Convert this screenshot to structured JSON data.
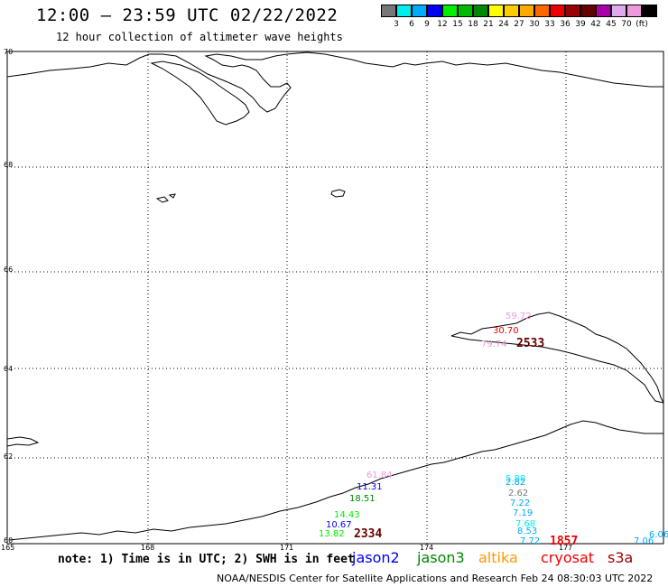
{
  "header": {
    "title": "12:00 – 23:59 UTC 02/22/2022",
    "subtitle": "12 hour collection of altimeter wave heights"
  },
  "colorbar": {
    "colors": [
      "#777777",
      "#00eeee",
      "#00aaff",
      "#0000ee",
      "#00ee00",
      "#00bb00",
      "#008800",
      "#ffff00",
      "#ffcc00",
      "#ffaa00",
      "#ff6600",
      "#ee0000",
      "#990000",
      "#660000",
      "#aa00aa",
      "#ddaaee",
      "#ee99dd",
      "#000000"
    ],
    "labels": [
      "3",
      "6",
      "9",
      "12",
      "15",
      "18",
      "21",
      "24",
      "27",
      "30",
      "33",
      "36",
      "39",
      "42",
      "45",
      "70",
      "(ft)"
    ]
  },
  "map": {
    "lat_labels": [
      "70",
      "68",
      "66",
      "64",
      "62",
      "60"
    ],
    "lon_labels": [
      "165",
      "168",
      "171",
      "174",
      "177"
    ],
    "observations": [
      {
        "text": "59.72",
        "color": "#ee99dd"
      },
      {
        "text": "30.70",
        "color": "#ee0000"
      },
      {
        "text": "79.74",
        "color": "#ee99dd"
      },
      {
        "text": "2533",
        "color": "#660000"
      },
      {
        "text": "61.84",
        "color": "#ee99dd"
      },
      {
        "text": "11.31",
        "color": "#0000ee"
      },
      {
        "text": "18.51",
        "color": "#008800"
      },
      {
        "text": "14.43",
        "color": "#00ee00"
      },
      {
        "text": "10.67",
        "color": "#0000ee"
      },
      {
        "text": "13.82",
        "color": "#00ee00"
      },
      {
        "text": "2334",
        "color": "#660000"
      },
      {
        "text": "5.88",
        "color": "#00eeee"
      },
      {
        "text": "2.82",
        "color": "#00aaff"
      },
      {
        "text": "2.62",
        "color": "#777777"
      },
      {
        "text": "7.22",
        "color": "#00aaff"
      },
      {
        "text": "7.19",
        "color": "#00aaff"
      },
      {
        "text": "7.68",
        "color": "#00eeee"
      },
      {
        "text": "8.53",
        "color": "#00aaff"
      },
      {
        "text": "7.72",
        "color": "#00aaff"
      },
      {
        "text": "1857",
        "color": "#ee0000"
      },
      {
        "text": "7.06",
        "color": "#00aaff"
      },
      {
        "text": "6.06",
        "color": "#00aaff"
      }
    ]
  },
  "note": "note: 1) Time is in UTC; 2) SWH is in feet",
  "satellites": [
    {
      "name": "jason2",
      "color": "#0000ee"
    },
    {
      "name": "jason3",
      "color": "#008800"
    },
    {
      "name": "altika",
      "color": "#ff9900"
    },
    {
      "name": "cryosat",
      "color": "#ee0000"
    },
    {
      "name": "s3a",
      "color": "#990000"
    }
  ],
  "footer": "NOAA/NESDIS Center for Satellite Applications and Research   Feb 24 08:30:03 UTC 2022"
}
